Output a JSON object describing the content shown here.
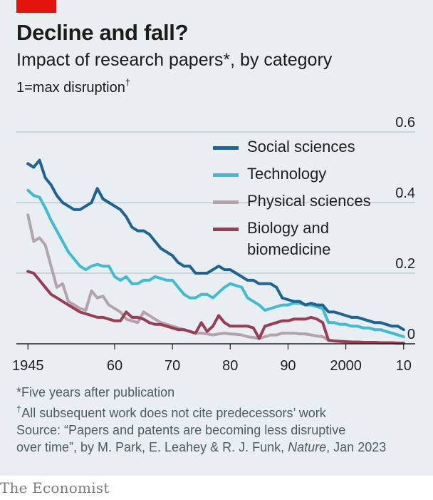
{
  "colors": {
    "accent_red": "#e3120b",
    "background": "#e8eef2",
    "gridline": "#b7c3cc",
    "baseline": "#1f1f1f"
  },
  "header": {
    "title": "Decline and fall?",
    "subtitle": "Impact of research papers*, by category",
    "unit": "1=max disruption",
    "unit_mark": "†"
  },
  "notes": {
    "note1": "*Five years after publication",
    "note2_mark": "†",
    "note2": "All subsequent work does not cite predecessors’ work",
    "source_line1": "Source: “Papers and patents are becoming less disruptive",
    "source_line2_pre": "over time”, by M. Park, E. Leahey & R. J. Funk, ",
    "source_journal": "Nature",
    "source_line2_post": ", Jan 2023"
  },
  "brand": "The Economist",
  "chart_data": {
    "type": "line",
    "xlim": [
      1943,
      2012
    ],
    "ylim": [
      0,
      0.6
    ],
    "y_ticks": [
      0,
      0.2,
      0.4,
      0.6
    ],
    "y_tick_labels": [
      "0",
      "0.2",
      "0.4",
      "0.6"
    ],
    "x_ticks": [
      1945,
      1960,
      1970,
      1980,
      1990,
      2000,
      2010
    ],
    "x_tick_labels": [
      "1945",
      "60",
      "70",
      "80",
      "90",
      "2000",
      "10"
    ],
    "grid": true,
    "legend_placement": "top-right",
    "series": [
      {
        "name": "Social sciences",
        "color": "#1d6396",
        "points": [
          [
            1945,
            0.51
          ],
          [
            1946,
            0.5
          ],
          [
            1947,
            0.52
          ],
          [
            1948,
            0.47
          ],
          [
            1949,
            0.45
          ],
          [
            1950,
            0.42
          ],
          [
            1951,
            0.4
          ],
          [
            1952,
            0.39
          ],
          [
            1953,
            0.38
          ],
          [
            1954,
            0.38
          ],
          [
            1955,
            0.39
          ],
          [
            1956,
            0.4
          ],
          [
            1957,
            0.44
          ],
          [
            1958,
            0.41
          ],
          [
            1959,
            0.4
          ],
          [
            1960,
            0.39
          ],
          [
            1961,
            0.38
          ],
          [
            1962,
            0.36
          ],
          [
            1963,
            0.33
          ],
          [
            1964,
            0.32
          ],
          [
            1965,
            0.32
          ],
          [
            1966,
            0.31
          ],
          [
            1967,
            0.29
          ],
          [
            1968,
            0.27
          ],
          [
            1969,
            0.26
          ],
          [
            1970,
            0.25
          ],
          [
            1971,
            0.23
          ],
          [
            1972,
            0.22
          ],
          [
            1973,
            0.22
          ],
          [
            1974,
            0.2
          ],
          [
            1975,
            0.2
          ],
          [
            1976,
            0.2
          ],
          [
            1977,
            0.21
          ],
          [
            1978,
            0.22
          ],
          [
            1979,
            0.21
          ],
          [
            1980,
            0.21
          ],
          [
            1981,
            0.2
          ],
          [
            1982,
            0.19
          ],
          [
            1983,
            0.18
          ],
          [
            1984,
            0.18
          ],
          [
            1985,
            0.17
          ],
          [
            1986,
            0.17
          ],
          [
            1987,
            0.17
          ],
          [
            1988,
            0.16
          ],
          [
            1989,
            0.13
          ],
          [
            1990,
            0.125
          ],
          [
            1991,
            0.12
          ],
          [
            1992,
            0.12
          ],
          [
            1993,
            0.11
          ],
          [
            1994,
            0.115
          ],
          [
            1995,
            0.11
          ],
          [
            1996,
            0.11
          ],
          [
            1997,
            0.09
          ],
          [
            1998,
            0.09
          ],
          [
            1999,
            0.085
          ],
          [
            2000,
            0.08
          ],
          [
            2001,
            0.075
          ],
          [
            2002,
            0.075
          ],
          [
            2003,
            0.07
          ],
          [
            2004,
            0.065
          ],
          [
            2005,
            0.06
          ],
          [
            2006,
            0.06
          ],
          [
            2007,
            0.055
          ],
          [
            2008,
            0.05
          ],
          [
            2009,
            0.05
          ],
          [
            2010,
            0.04
          ]
        ]
      },
      {
        "name": "Technology",
        "color": "#3ebcd2",
        "points": [
          [
            1945,
            0.435
          ],
          [
            1946,
            0.42
          ],
          [
            1947,
            0.415
          ],
          [
            1948,
            0.385
          ],
          [
            1949,
            0.35
          ],
          [
            1950,
            0.32
          ],
          [
            1951,
            0.29
          ],
          [
            1952,
            0.26
          ],
          [
            1953,
            0.24
          ],
          [
            1954,
            0.22
          ],
          [
            1955,
            0.21
          ],
          [
            1956,
            0.22
          ],
          [
            1957,
            0.225
          ],
          [
            1958,
            0.22
          ],
          [
            1959,
            0.22
          ],
          [
            1960,
            0.19
          ],
          [
            1961,
            0.18
          ],
          [
            1962,
            0.19
          ],
          [
            1963,
            0.17
          ],
          [
            1964,
            0.17
          ],
          [
            1965,
            0.18
          ],
          [
            1966,
            0.18
          ],
          [
            1967,
            0.19
          ],
          [
            1968,
            0.185
          ],
          [
            1969,
            0.18
          ],
          [
            1970,
            0.18
          ],
          [
            1971,
            0.16
          ],
          [
            1972,
            0.14
          ],
          [
            1973,
            0.13
          ],
          [
            1974,
            0.13
          ],
          [
            1975,
            0.14
          ],
          [
            1976,
            0.14
          ],
          [
            1977,
            0.13
          ],
          [
            1978,
            0.145
          ],
          [
            1979,
            0.16
          ],
          [
            1980,
            0.17
          ],
          [
            1981,
            0.165
          ],
          [
            1982,
            0.16
          ],
          [
            1983,
            0.13
          ],
          [
            1984,
            0.12
          ],
          [
            1985,
            0.11
          ],
          [
            1986,
            0.095
          ],
          [
            1987,
            0.1
          ],
          [
            1988,
            0.105
          ],
          [
            1989,
            0.11
          ],
          [
            1990,
            0.11
          ],
          [
            1991,
            0.115
          ],
          [
            1992,
            0.115
          ],
          [
            1993,
            0.11
          ],
          [
            1994,
            0.11
          ],
          [
            1995,
            0.105
          ],
          [
            1996,
            0.1
          ],
          [
            1997,
            0.06
          ],
          [
            1998,
            0.06
          ],
          [
            1999,
            0.055
          ],
          [
            2000,
            0.055
          ],
          [
            2001,
            0.05
          ],
          [
            2002,
            0.05
          ],
          [
            2003,
            0.045
          ],
          [
            2004,
            0.045
          ],
          [
            2005,
            0.04
          ],
          [
            2006,
            0.04
          ],
          [
            2007,
            0.035
          ],
          [
            2008,
            0.03
          ],
          [
            2009,
            0.025
          ],
          [
            2010,
            0.02
          ]
        ]
      },
      {
        "name": "Physical sciences",
        "color": "#b4a3aa",
        "points": [
          [
            1945,
            0.365
          ],
          [
            1946,
            0.29
          ],
          [
            1947,
            0.3
          ],
          [
            1948,
            0.28
          ],
          [
            1949,
            0.22
          ],
          [
            1950,
            0.16
          ],
          [
            1951,
            0.17
          ],
          [
            1952,
            0.12
          ],
          [
            1953,
            0.11
          ],
          [
            1954,
            0.1
          ],
          [
            1955,
            0.095
          ],
          [
            1956,
            0.15
          ],
          [
            1957,
            0.13
          ],
          [
            1958,
            0.135
          ],
          [
            1959,
            0.11
          ],
          [
            1960,
            0.1
          ],
          [
            1961,
            0.09
          ],
          [
            1962,
            0.07
          ],
          [
            1963,
            0.065
          ],
          [
            1964,
            0.06
          ],
          [
            1965,
            0.09
          ],
          [
            1966,
            0.08
          ],
          [
            1967,
            0.07
          ],
          [
            1968,
            0.06
          ],
          [
            1969,
            0.055
          ],
          [
            1970,
            0.05
          ],
          [
            1971,
            0.045
          ],
          [
            1972,
            0.04
          ],
          [
            1973,
            0.035
          ],
          [
            1974,
            0.03
          ],
          [
            1975,
            0.03
          ],
          [
            1976,
            0.028
          ],
          [
            1977,
            0.025
          ],
          [
            1978,
            0.028
          ],
          [
            1979,
            0.03
          ],
          [
            1980,
            0.028
          ],
          [
            1981,
            0.027
          ],
          [
            1982,
            0.025
          ],
          [
            1983,
            0.02
          ],
          [
            1984,
            0.018
          ],
          [
            1985,
            0.015
          ],
          [
            1986,
            0.02
          ],
          [
            1987,
            0.025
          ],
          [
            1988,
            0.025
          ],
          [
            1989,
            0.03
          ],
          [
            1990,
            0.03
          ],
          [
            1991,
            0.03
          ],
          [
            1992,
            0.028
          ],
          [
            1993,
            0.028
          ],
          [
            1994,
            0.025
          ],
          [
            1995,
            0.022
          ],
          [
            1996,
            0.02
          ],
          [
            1997,
            0.01
          ],
          [
            1998,
            0.008
          ],
          [
            1999,
            0.006
          ],
          [
            2000,
            0.005
          ],
          [
            2001,
            0.005
          ],
          [
            2002,
            0.004
          ],
          [
            2003,
            0.004
          ],
          [
            2004,
            0.003
          ],
          [
            2005,
            0.003
          ],
          [
            2006,
            0.002
          ],
          [
            2007,
            0.002
          ],
          [
            2008,
            0.002
          ],
          [
            2009,
            0.001
          ],
          [
            2010,
            0.001
          ]
        ]
      },
      {
        "name": "Biology and biomedicine",
        "color": "#9a3c52",
        "points": [
          [
            1945,
            0.205
          ],
          [
            1946,
            0.2
          ],
          [
            1947,
            0.18
          ],
          [
            1948,
            0.16
          ],
          [
            1949,
            0.14
          ],
          [
            1950,
            0.13
          ],
          [
            1951,
            0.12
          ],
          [
            1952,
            0.11
          ],
          [
            1953,
            0.1
          ],
          [
            1954,
            0.09
          ],
          [
            1955,
            0.085
          ],
          [
            1956,
            0.08
          ],
          [
            1957,
            0.075
          ],
          [
            1958,
            0.075
          ],
          [
            1959,
            0.07
          ],
          [
            1960,
            0.065
          ],
          [
            1961,
            0.065
          ],
          [
            1962,
            0.09
          ],
          [
            1963,
            0.075
          ],
          [
            1964,
            0.075
          ],
          [
            1965,
            0.07
          ],
          [
            1966,
            0.06
          ],
          [
            1967,
            0.055
          ],
          [
            1968,
            0.055
          ],
          [
            1969,
            0.05
          ],
          [
            1970,
            0.045
          ],
          [
            1971,
            0.04
          ],
          [
            1972,
            0.04
          ],
          [
            1973,
            0.035
          ],
          [
            1974,
            0.03
          ],
          [
            1975,
            0.06
          ],
          [
            1976,
            0.035
          ],
          [
            1977,
            0.05
          ],
          [
            1978,
            0.08
          ],
          [
            1979,
            0.06
          ],
          [
            1980,
            0.05
          ],
          [
            1981,
            0.05
          ],
          [
            1982,
            0.05
          ],
          [
            1983,
            0.05
          ],
          [
            1984,
            0.045
          ],
          [
            1985,
            0.015
          ],
          [
            1986,
            0.05
          ],
          [
            1987,
            0.055
          ],
          [
            1988,
            0.06
          ],
          [
            1989,
            0.065
          ],
          [
            1990,
            0.065
          ],
          [
            1991,
            0.07
          ],
          [
            1992,
            0.07
          ],
          [
            1993,
            0.07
          ],
          [
            1994,
            0.075
          ],
          [
            1995,
            0.07
          ],
          [
            1996,
            0.06
          ],
          [
            1997,
            0.01
          ],
          [
            1998,
            0.008
          ],
          [
            1999,
            0.007
          ],
          [
            2000,
            0.006
          ],
          [
            2001,
            0.005
          ],
          [
            2002,
            0.005
          ],
          [
            2003,
            0.004
          ],
          [
            2004,
            0.004
          ],
          [
            2005,
            0.004
          ],
          [
            2006,
            0.003
          ],
          [
            2007,
            0.003
          ],
          [
            2008,
            0.003
          ],
          [
            2009,
            0.002
          ],
          [
            2010,
            0.002
          ]
        ]
      }
    ],
    "legend": [
      {
        "lines": [
          "Social sciences"
        ],
        "color": "#1d6396"
      },
      {
        "lines": [
          "Technology"
        ],
        "color": "#3ebcd2"
      },
      {
        "lines": [
          "Physical sciences"
        ],
        "color": "#b4a3aa"
      },
      {
        "lines": [
          "Biology and",
          "biomedicine"
        ],
        "color": "#9a3c52"
      }
    ]
  }
}
